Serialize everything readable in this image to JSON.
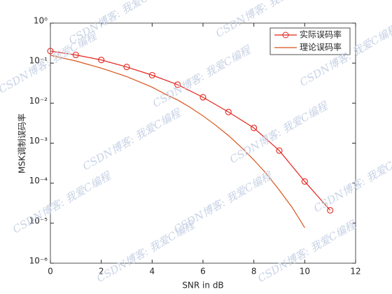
{
  "chart_data": {
    "type": "line",
    "xlabel": "SNR in dB",
    "ylabel": "MSK调制误码率",
    "watermark": "CSDN博客: 我爱C编程",
    "log_y": true,
    "legend": "northeast",
    "xlim": [
      0,
      12
    ],
    "xticks": [
      0,
      2,
      4,
      6,
      8,
      10,
      12
    ],
    "ylim": [
      1e-06,
      1
    ],
    "yticks": [
      {
        "value": 1e-06,
        "label": "10⁻⁶"
      },
      {
        "value": 1e-05,
        "label": "10⁻⁵"
      },
      {
        "value": 0.0001,
        "label": "10⁻⁴"
      },
      {
        "value": 0.001,
        "label": "10⁻³"
      },
      {
        "value": 0.01,
        "label": "10⁻²"
      },
      {
        "value": 0.1,
        "label": "10⁻¹"
      },
      {
        "value": 1,
        "label": "10⁰"
      }
    ],
    "series": [
      {
        "name": "实际误码率",
        "color": "#e3241c",
        "marker": "circle",
        "x": [
          0,
          1,
          2,
          3,
          4,
          5,
          6,
          7,
          8,
          9,
          10,
          11
        ],
        "values": [
          0.2,
          0.16,
          0.12,
          0.08,
          0.05,
          0.029,
          0.014,
          0.006,
          0.0024,
          0.00065,
          0.00011,
          2.1e-05
        ]
      },
      {
        "name": "理论误码率",
        "color": "#d95319",
        "marker": "none",
        "x": [
          0,
          0.5,
          1,
          1.5,
          2,
          2.5,
          3,
          3.5,
          4,
          4.5,
          5,
          5.5,
          6,
          6.5,
          7,
          7.5,
          8,
          8.5,
          9,
          9.5,
          10
        ],
        "values": [
          0.157,
          0.133,
          0.113,
          0.092,
          0.075,
          0.059,
          0.046,
          0.034,
          0.025,
          0.017,
          0.012,
          0.0078,
          0.0048,
          0.0028,
          0.00155,
          0.00079,
          0.00038,
          0.00017,
          6.7e-05,
          2.5e-05,
          7.7e-06
        ]
      }
    ]
  }
}
